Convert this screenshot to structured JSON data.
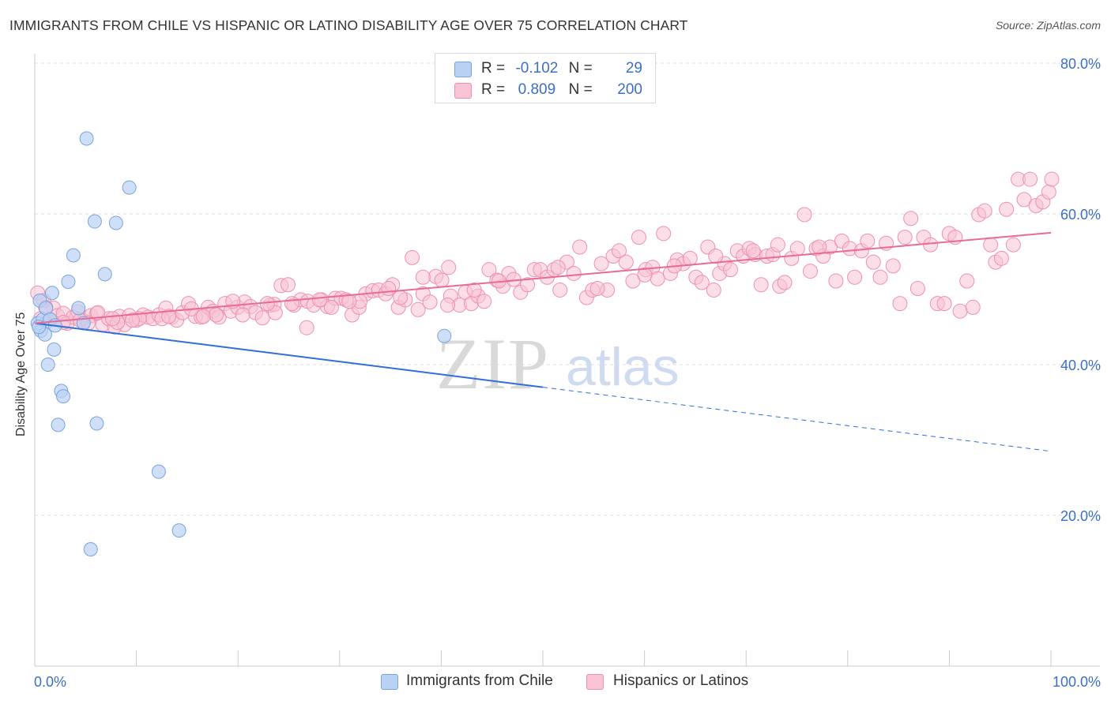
{
  "title": "IMMIGRANTS FROM CHILE VS HISPANIC OR LATINO DISABILITY AGE OVER 75 CORRELATION CHART",
  "source": "Source: ZipAtlas.com",
  "watermark": {
    "zip": "ZIP",
    "atlas": "atlas"
  },
  "legend": {
    "rows": [
      {
        "r_label": "R =",
        "r_value": "-0.102",
        "n_label": "N =",
        "n_value": "29"
      },
      {
        "r_label": "R =",
        "r_value": "0.809",
        "n_label": "N =",
        "n_value": "200"
      }
    ]
  },
  "bottom_legend": [
    "Immigrants from Chile",
    "Hispanics or Latinos"
  ],
  "colors": {
    "blue_fill": "#b9d1f3",
    "blue_stroke": "#7aa4dd",
    "blue_line": "#2f6fd6",
    "pink_fill": "#f8c3d4",
    "pink_stroke": "#ee90b0",
    "pink_line": "#e86b97",
    "axis_text": "#3b6fc6",
    "grid": "#dddddd"
  },
  "chart_data": {
    "type": "scatter",
    "title": "IMMIGRANTS FROM CHILE VS HISPANIC OR LATINO DISABILITY AGE OVER 75 CORRELATION CHART",
    "xlabel": "",
    "ylabel": "Disability Age Over 75",
    "xlim": [
      0,
      100
    ],
    "ylim": [
      0,
      80
    ],
    "x_tick_labels": [
      "0.0%",
      "100.0%"
    ],
    "y_ticks": [
      20,
      40,
      60,
      80
    ],
    "y_tick_labels": [
      "20.0%",
      "40.0%",
      "60.0%",
      "80.0%"
    ],
    "grid": true,
    "legend_placement": "top-center",
    "series": [
      {
        "name": "Immigrants from Chile",
        "r": -0.102,
        "n": 29,
        "trend": {
          "x0": 0,
          "y0": 45.5,
          "x1": 50,
          "y1": 37.0,
          "dashed_to_x": 100,
          "dashed_to_y": 28.5
        },
        "points": [
          [
            0.3,
            45.5
          ],
          [
            0.5,
            48.5
          ],
          [
            0.6,
            44.5
          ],
          [
            0.8,
            46.0
          ],
          [
            1.0,
            44.0
          ],
          [
            1.1,
            47.5
          ],
          [
            1.3,
            40.0
          ],
          [
            1.5,
            46.0
          ],
          [
            1.7,
            49.5
          ],
          [
            1.9,
            42.0
          ],
          [
            2.0,
            45.2
          ],
          [
            2.3,
            32.0
          ],
          [
            2.6,
            36.5
          ],
          [
            2.8,
            35.8
          ],
          [
            3.3,
            51.0
          ],
          [
            3.8,
            54.5
          ],
          [
            4.3,
            47.5
          ],
          [
            4.8,
            45.5
          ],
          [
            5.1,
            70.0
          ],
          [
            5.5,
            15.5
          ],
          [
            5.9,
            59.0
          ],
          [
            6.1,
            32.2
          ],
          [
            6.9,
            52.0
          ],
          [
            8.0,
            58.8
          ],
          [
            9.3,
            63.5
          ],
          [
            12.2,
            25.8
          ],
          [
            14.2,
            18.0
          ],
          [
            40.3,
            43.8
          ],
          [
            0.4,
            45.0
          ]
        ]
      },
      {
        "name": "Hispanics or Latinos",
        "r": 0.809,
        "n": 200,
        "trend": {
          "x0": 0,
          "y0": 45.5,
          "x1": 100,
          "y1": 57.5
        },
        "points": [
          [
            0.3,
            49.5
          ],
          [
            0.9,
            48.5
          ],
          [
            1.3,
            45.8
          ],
          [
            1.9,
            47.5
          ],
          [
            2.3,
            46.5
          ],
          [
            2.9,
            46.8
          ],
          [
            3.3,
            45.5
          ],
          [
            3.9,
            46.3
          ],
          [
            4.4,
            47.0
          ],
          [
            5.0,
            45.8
          ],
          [
            5.7,
            46.5
          ],
          [
            6.3,
            46.8
          ],
          [
            6.9,
            45.3
          ],
          [
            7.5,
            46.1
          ],
          [
            8.1,
            45.0
          ],
          [
            8.6,
            46.4
          ],
          [
            9.1,
            45.3
          ],
          [
            9.6,
            46.5
          ],
          [
            10.3,
            45.9
          ],
          [
            11.0,
            46.6
          ],
          [
            11.5,
            46.3
          ],
          [
            12.0,
            46.1
          ],
          [
            12.6,
            46.6
          ],
          [
            13.3,
            47.5
          ],
          [
            13.9,
            46.3
          ],
          [
            14.4,
            45.9
          ],
          [
            15.0,
            46.9
          ],
          [
            15.6,
            48.1
          ],
          [
            16.3,
            46.4
          ],
          [
            16.9,
            46.3
          ],
          [
            17.6,
            47.6
          ],
          [
            18.1,
            47.1
          ],
          [
            18.7,
            46.3
          ],
          [
            19.3,
            48.1
          ],
          [
            19.9,
            47.1
          ],
          [
            20.6,
            47.6
          ],
          [
            21.3,
            48.3
          ],
          [
            21.9,
            47.7
          ],
          [
            22.4,
            46.9
          ],
          [
            23.1,
            46.2
          ],
          [
            23.9,
            47.9
          ],
          [
            24.3,
            48.0
          ],
          [
            25.0,
            50.5
          ],
          [
            25.7,
            50.6
          ],
          [
            26.3,
            47.9
          ],
          [
            27.0,
            48.6
          ],
          [
            27.7,
            48.4
          ],
          [
            28.3,
            47.9
          ],
          [
            29.1,
            48.6
          ],
          [
            29.7,
            47.7
          ],
          [
            30.5,
            48.8
          ],
          [
            31.1,
            48.8
          ],
          [
            31.6,
            48.6
          ],
          [
            32.2,
            46.6
          ],
          [
            32.9,
            47.6
          ],
          [
            33.6,
            49.4
          ],
          [
            34.3,
            49.8
          ],
          [
            34.9,
            49.9
          ],
          [
            35.6,
            49.4
          ],
          [
            36.3,
            50.6
          ],
          [
            36.9,
            47.6
          ],
          [
            37.6,
            48.6
          ],
          [
            38.3,
            54.2
          ],
          [
            38.9,
            47.3
          ],
          [
            39.4,
            49.4
          ],
          [
            40.1,
            48.3
          ],
          [
            40.7,
            51.7
          ],
          [
            41.3,
            51.2
          ],
          [
            42.2,
            49.1
          ],
          [
            43.1,
            47.9
          ],
          [
            43.7,
            49.6
          ],
          [
            44.3,
            48.1
          ],
          [
            45.0,
            49.1
          ],
          [
            45.6,
            48.4
          ],
          [
            46.1,
            52.6
          ],
          [
            46.9,
            51.2
          ],
          [
            47.5,
            50.4
          ],
          [
            48.1,
            52.1
          ],
          [
            48.6,
            51.3
          ],
          [
            49.3,
            49.6
          ],
          [
            50.0,
            50.6
          ],
          [
            50.7,
            52.6
          ],
          [
            51.3,
            52.6
          ],
          [
            52.0,
            51.6
          ],
          [
            52.7,
            52.6
          ],
          [
            53.3,
            49.9
          ],
          [
            54.0,
            53.6
          ],
          [
            54.7,
            52.1
          ],
          [
            55.3,
            55.6
          ],
          [
            56.0,
            48.9
          ],
          [
            56.6,
            49.9
          ],
          [
            57.5,
            53.4
          ],
          [
            58.1,
            49.9
          ],
          [
            58.7,
            54.4
          ],
          [
            59.3,
            55.1
          ],
          [
            60.0,
            53.6
          ],
          [
            60.7,
            51.1
          ],
          [
            61.3,
            56.9
          ],
          [
            62.0,
            52.6
          ],
          [
            62.7,
            52.9
          ],
          [
            63.2,
            51.4
          ],
          [
            63.8,
            57.4
          ],
          [
            64.5,
            52.1
          ],
          [
            65.2,
            53.9
          ],
          [
            65.8,
            53.4
          ],
          [
            66.5,
            54.1
          ],
          [
            67.1,
            51.6
          ],
          [
            67.7,
            50.9
          ],
          [
            68.3,
            55.6
          ],
          [
            68.9,
            49.9
          ],
          [
            69.5,
            52.1
          ],
          [
            70.0,
            53.4
          ],
          [
            70.6,
            52.6
          ],
          [
            71.3,
            55.1
          ],
          [
            71.9,
            54.4
          ],
          [
            72.5,
            55.4
          ],
          [
            73.1,
            54.6
          ],
          [
            73.7,
            50.6
          ],
          [
            74.3,
            54.4
          ],
          [
            74.9,
            54.6
          ],
          [
            75.6,
            50.4
          ],
          [
            76.1,
            50.9
          ],
          [
            76.8,
            54.1
          ],
          [
            77.4,
            55.4
          ],
          [
            78.1,
            59.9
          ],
          [
            78.7,
            52.4
          ],
          [
            79.3,
            55.4
          ],
          [
            80.0,
            54.4
          ],
          [
            80.7,
            55.6
          ],
          [
            81.3,
            51.1
          ],
          [
            81.9,
            56.4
          ],
          [
            82.7,
            55.4
          ],
          [
            83.2,
            51.6
          ],
          [
            83.9,
            55.1
          ],
          [
            84.5,
            56.4
          ],
          [
            85.1,
            53.6
          ],
          [
            85.8,
            51.6
          ],
          [
            86.4,
            56.1
          ],
          [
            87.1,
            53.1
          ],
          [
            87.8,
            48.1
          ],
          [
            88.3,
            56.9
          ],
          [
            88.9,
            59.4
          ],
          [
            89.6,
            50.1
          ],
          [
            90.2,
            56.9
          ],
          [
            90.9,
            55.9
          ],
          [
            91.6,
            48.1
          ],
          [
            92.3,
            48.1
          ],
          [
            92.8,
            57.4
          ],
          [
            93.4,
            56.9
          ],
          [
            93.9,
            47.1
          ],
          [
            94.6,
            51.1
          ],
          [
            95.2,
            47.6
          ],
          [
            95.8,
            59.9
          ],
          [
            96.4,
            60.4
          ],
          [
            97.0,
            55.9
          ],
          [
            97.5,
            53.6
          ],
          [
            98.1,
            54.1
          ],
          [
            98.6,
            60.6
          ],
          [
            99.3,
            55.9
          ],
          [
            99.8,
            64.6
          ],
          [
            100.4,
            61.9
          ],
          [
            101.0,
            64.6
          ],
          [
            101.6,
            61.1
          ],
          [
            102.3,
            61.6
          ],
          [
            102.9,
            62.9
          ],
          [
            103.2,
            64.6
          ],
          [
            44.6,
            49.9
          ],
          [
            42.0,
            52.9
          ],
          [
            39.4,
            51.6
          ],
          [
            35.9,
            50.1
          ],
          [
            33.0,
            48.4
          ],
          [
            30.1,
            47.6
          ],
          [
            27.6,
            44.9
          ],
          [
            24.4,
            46.9
          ],
          [
            21.1,
            46.6
          ],
          [
            18.4,
            46.6
          ],
          [
            15.9,
            47.4
          ],
          [
            12.9,
            46.1
          ],
          [
            10.6,
            46.1
          ],
          [
            8.4,
            45.6
          ],
          [
            6.4,
            46.9
          ],
          [
            4.6,
            45.9
          ],
          [
            2.9,
            45.6
          ],
          [
            1.1,
            47.6
          ],
          [
            0.6,
            46.1
          ],
          [
            5.4,
            45.5
          ],
          [
            7.9,
            46.1
          ],
          [
            9.9,
            45.9
          ],
          [
            13.6,
            46.4
          ],
          [
            17.1,
            46.4
          ],
          [
            20.1,
            48.4
          ],
          [
            23.6,
            48.1
          ],
          [
            26.1,
            48.1
          ],
          [
            28.9,
            48.6
          ],
          [
            31.9,
            48.4
          ],
          [
            37.1,
            48.9
          ],
          [
            41.9,
            47.9
          ],
          [
            47.1,
            51.1
          ],
          [
            53.1,
            52.9
          ],
          [
            57.1,
            50.1
          ],
          [
            61.9,
            51.9
          ],
          [
            64.9,
            53.1
          ],
          [
            69.1,
            54.4
          ],
          [
            72.9,
            55.1
          ],
          [
            75.4,
            55.9
          ],
          [
            79.6,
            55.6
          ]
        ]
      }
    ]
  }
}
